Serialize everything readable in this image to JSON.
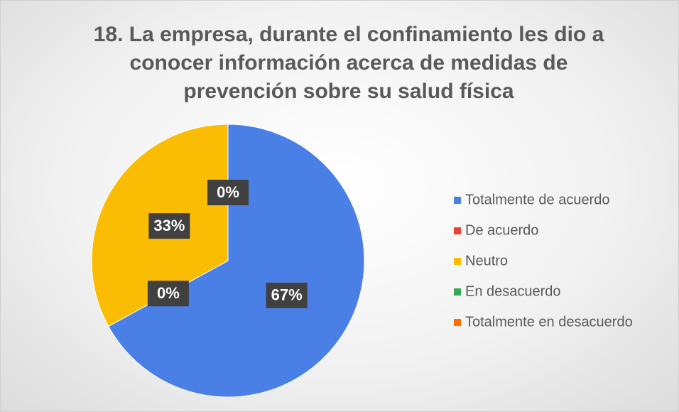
{
  "chart_data": {
    "type": "pie",
    "title": "18. La empresa, durante el confinamiento les dio a conocer información acerca de medidas de prevención sobre su salud física",
    "categories": [
      "Totalmente de acuerdo",
      "De acuerdo",
      "Neutro",
      "En desacuerdo",
      "Totalmente en desacuerdo"
    ],
    "values": [
      67,
      0,
      33,
      0,
      0
    ],
    "value_labels": [
      "67%",
      "0%",
      "33%",
      "0%",
      "0%"
    ],
    "colors": [
      "#4a7fe6",
      "#ea4335",
      "#fbbc04",
      "#34a853",
      "#ff6d01"
    ],
    "legend": "right"
  }
}
